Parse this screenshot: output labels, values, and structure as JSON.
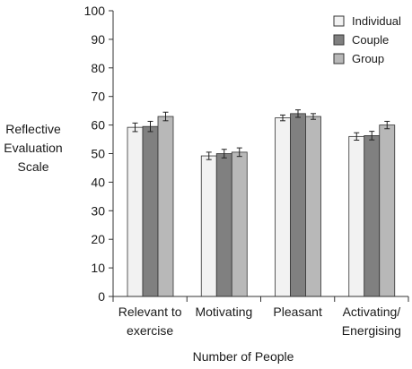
{
  "chart_data": {
    "type": "bar",
    "title": "",
    "xlabel": "Number of People",
    "ylabel": [
      "Reflective",
      "Evaluation",
      "Scale"
    ],
    "ylim": [
      0,
      100
    ],
    "yticks": [
      0,
      10,
      20,
      30,
      40,
      50,
      60,
      70,
      80,
      90,
      100
    ],
    "grid": false,
    "legend_position": "top-right",
    "categories": [
      [
        "Relevant to",
        "exercise"
      ],
      [
        "Motivating"
      ],
      [
        "Pleasant"
      ],
      [
        "Activating/",
        "Energising"
      ]
    ],
    "series": [
      {
        "name": "Individual",
        "color": "#f2f2f2",
        "values": [
          59.2,
          49.2,
          62.5,
          56.0
        ],
        "errors": [
          1.5,
          1.3,
          1.0,
          1.3
        ]
      },
      {
        "name": "Couple",
        "color": "#808080",
        "values": [
          59.5,
          50.0,
          64.0,
          56.3
        ],
        "errors": [
          1.8,
          1.5,
          1.3,
          1.5
        ]
      },
      {
        "name": "Group",
        "color": "#b8b8b8",
        "values": [
          63.0,
          50.5,
          63.0,
          60.0
        ],
        "errors": [
          1.5,
          1.5,
          1.0,
          1.3
        ]
      }
    ]
  }
}
